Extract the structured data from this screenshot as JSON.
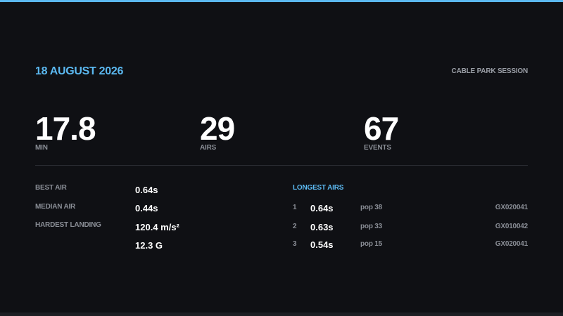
{
  "header": {
    "date": "18 AUGUST 2026",
    "session": "CABLE PARK SESSION"
  },
  "summary": [
    {
      "value": "17.8",
      "label": "MIN"
    },
    {
      "value": "29",
      "label": "AIRS"
    },
    {
      "value": "67",
      "label": "EVENTS"
    }
  ],
  "stats": [
    {
      "label": "BEST AIR",
      "values": [
        "0.64s"
      ]
    },
    {
      "label": "MEDIAN AIR",
      "values": [
        "0.44s"
      ]
    },
    {
      "label": "HARDEST LANDING",
      "values": [
        "120.4 m/s²",
        "12.3 G"
      ]
    }
  ],
  "longest_airs": {
    "title": "LONGEST AIRS",
    "rows": [
      {
        "rank": "1",
        "time": "0.64s",
        "pop": "pop 38",
        "file": "GX020041"
      },
      {
        "rank": "2",
        "time": "0.63s",
        "pop": "pop 33",
        "file": "GX010042"
      },
      {
        "rank": "3",
        "time": "0.54s",
        "pop": "pop 15",
        "file": "GX020041"
      }
    ]
  }
}
